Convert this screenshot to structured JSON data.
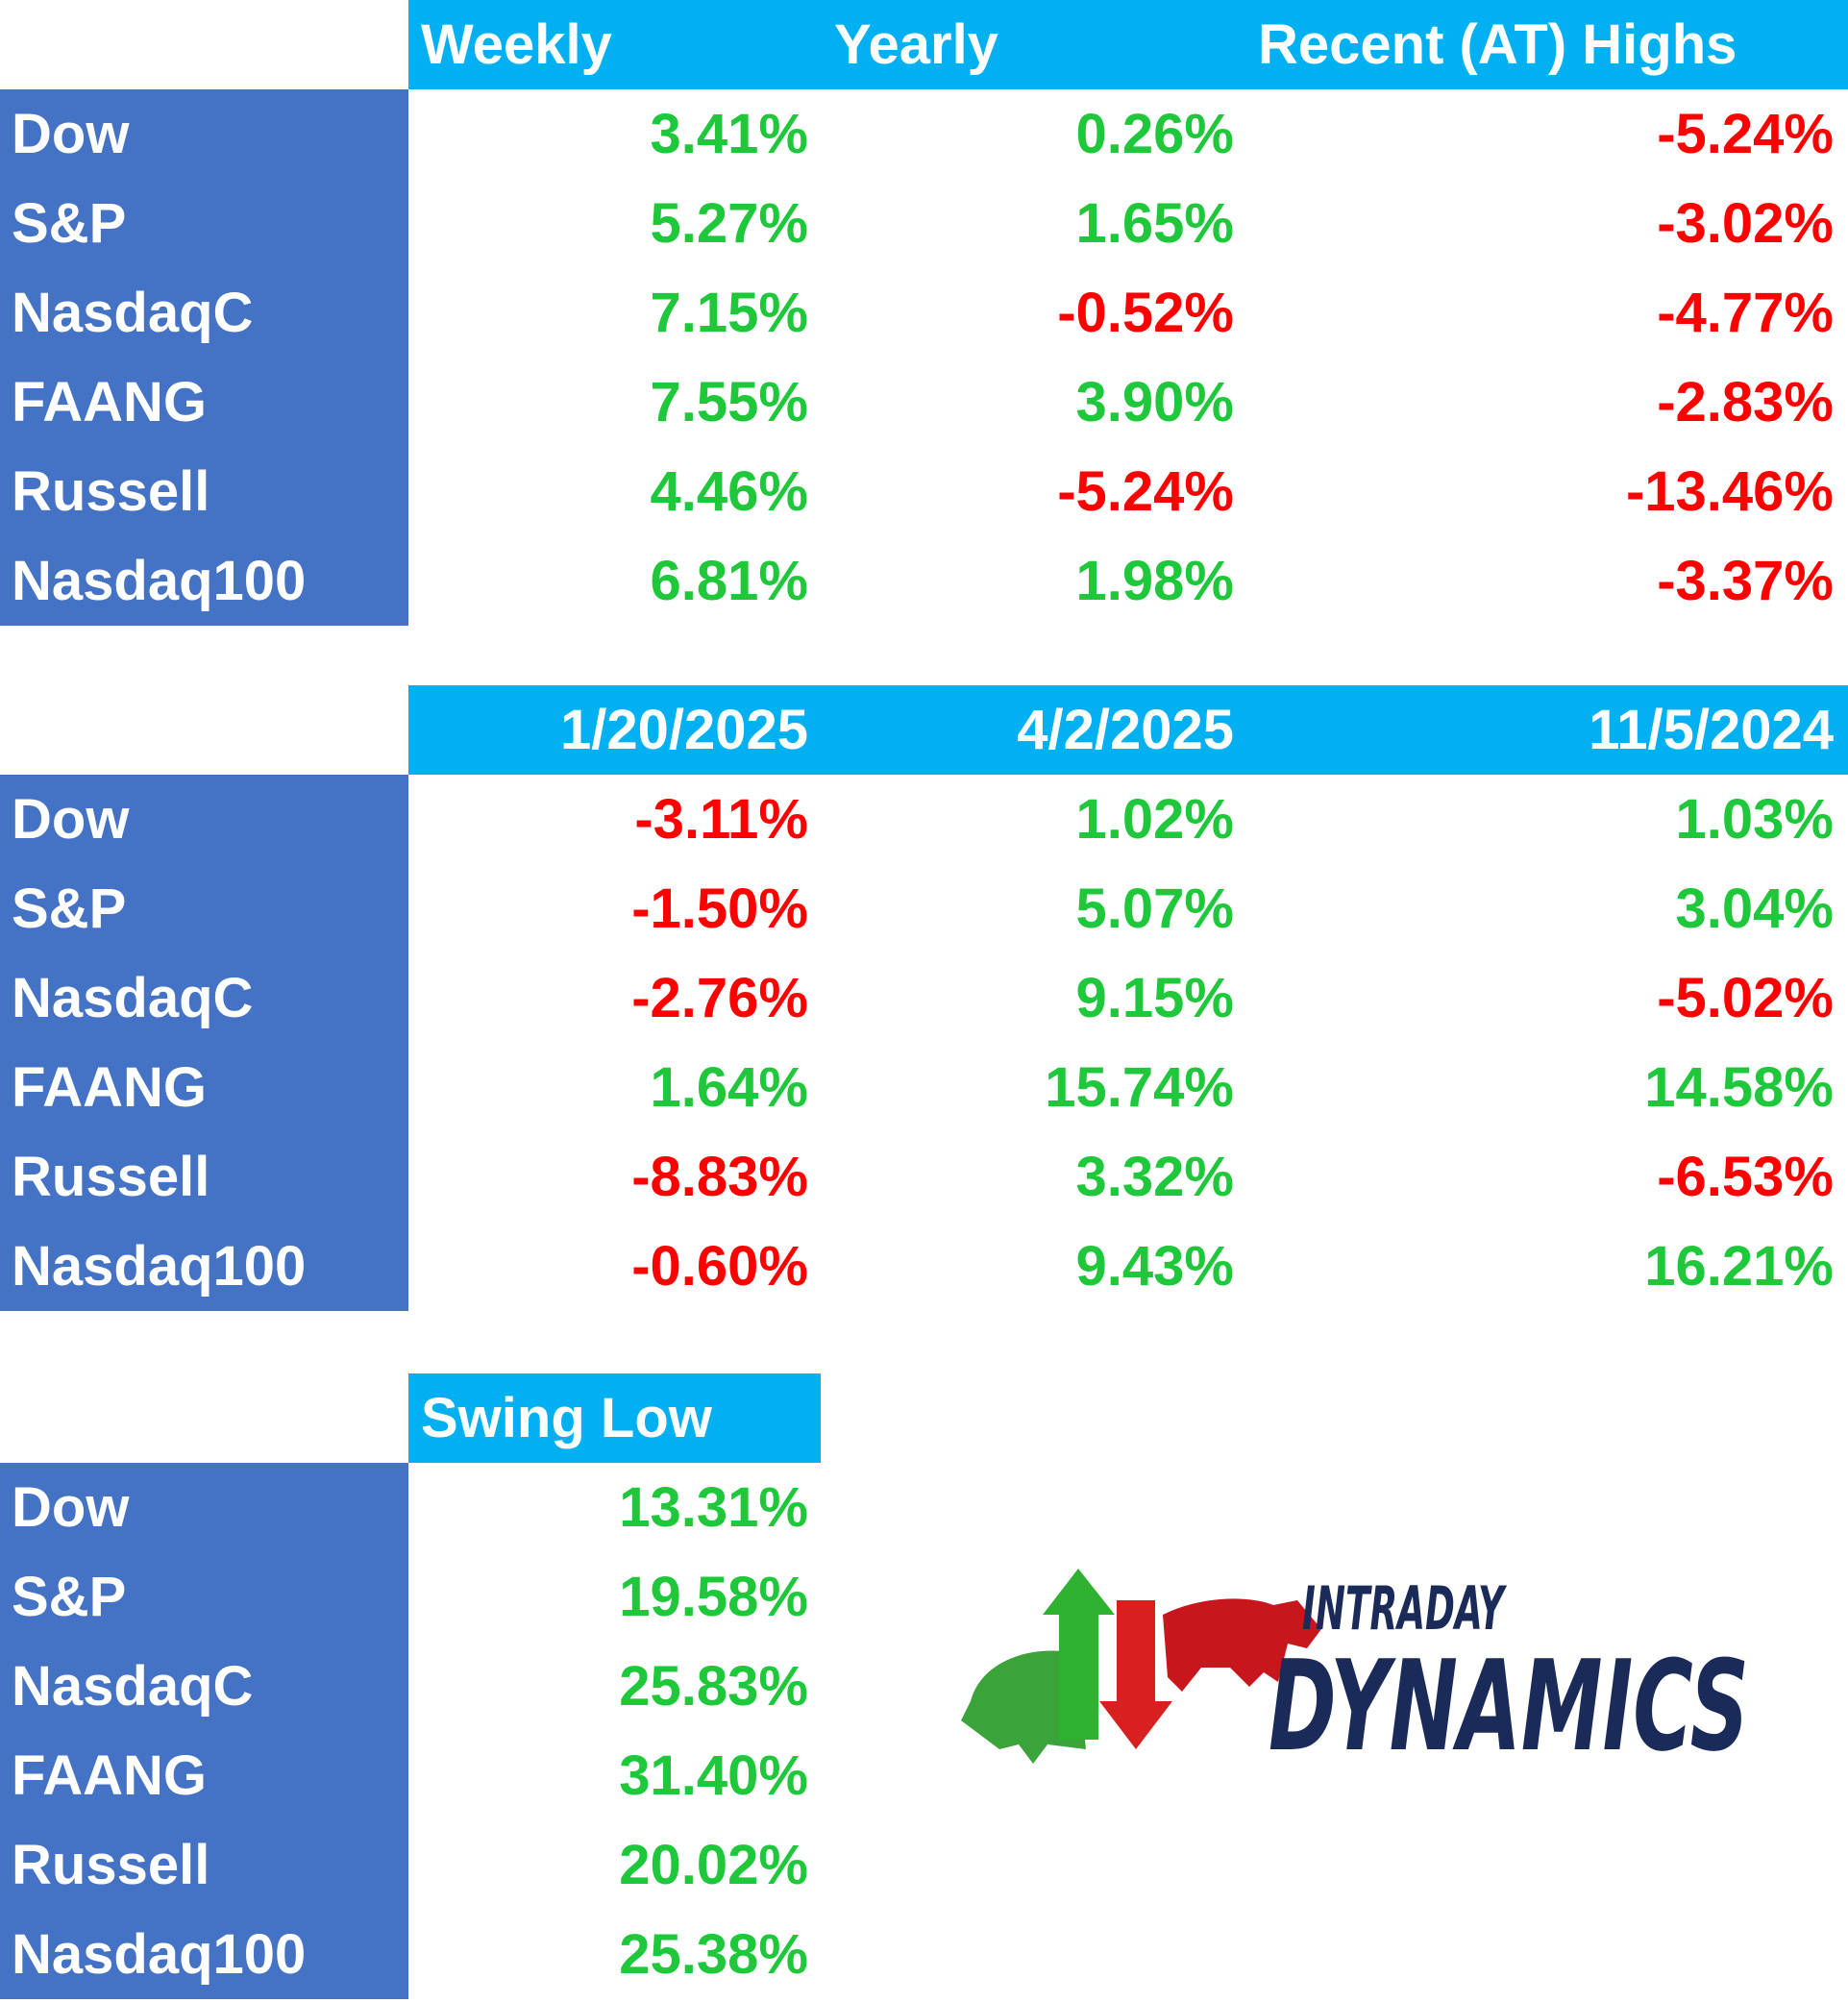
{
  "tables": [
    {
      "headers": [
        "Weekly",
        "Yearly",
        "Recent (AT) Highs"
      ],
      "header_align": "left",
      "rows": [
        [
          "Dow",
          "3.41%",
          "0.26%",
          "-5.24%"
        ],
        [
          "S&P",
          "5.27%",
          "1.65%",
          "-3.02%"
        ],
        [
          "NasdaqC",
          "7.15%",
          "-0.52%",
          "-4.77%"
        ],
        [
          "FAANG",
          "7.55%",
          "3.90%",
          "-2.83%"
        ],
        [
          "Russell",
          "4.46%",
          "-5.24%",
          "-13.46%"
        ],
        [
          "Nasdaq100",
          "6.81%",
          "1.98%",
          "-3.37%"
        ]
      ]
    },
    {
      "headers": [
        "1/20/2025",
        "4/2/2025",
        "11/5/2024"
      ],
      "header_align": "right",
      "rows": [
        [
          "Dow",
          "-3.11%",
          "1.02%",
          "1.03%"
        ],
        [
          "S&P",
          "-1.50%",
          "5.07%",
          "3.04%"
        ],
        [
          "NasdaqC",
          "-2.76%",
          "9.15%",
          "-5.02%"
        ],
        [
          "FAANG",
          "1.64%",
          "15.74%",
          "14.58%"
        ],
        [
          "Russell",
          "-8.83%",
          "3.32%",
          "-6.53%"
        ],
        [
          "Nasdaq100",
          "-0.60%",
          "9.43%",
          "16.21%"
        ]
      ]
    },
    {
      "headers": [
        "Swing Low"
      ],
      "header_align": "left",
      "rows": [
        [
          "Dow",
          "13.31%"
        ],
        [
          "S&P",
          "19.58%"
        ],
        [
          "NasdaqC",
          "25.83%"
        ],
        [
          "FAANG",
          "31.40%"
        ],
        [
          "Russell",
          "20.02%"
        ],
        [
          "Nasdaq100",
          "25.38%"
        ]
      ]
    }
  ],
  "logo": {
    "line1": "INTRADAY",
    "line2": "DYNAMICS"
  }
}
